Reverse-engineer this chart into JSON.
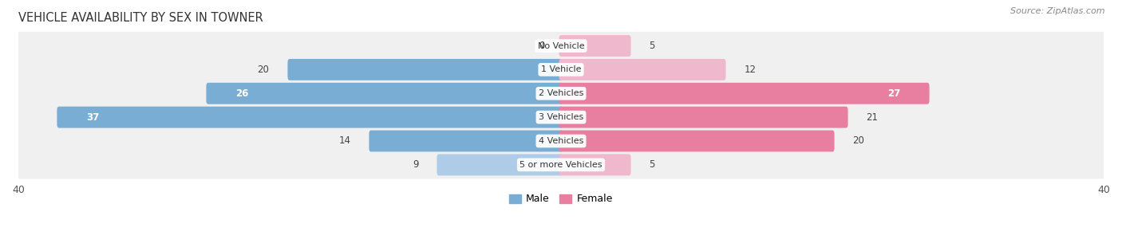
{
  "title": "VEHICLE AVAILABILITY BY SEX IN TOWNER",
  "source": "Source: ZipAtlas.com",
  "categories": [
    "No Vehicle",
    "1 Vehicle",
    "2 Vehicles",
    "3 Vehicles",
    "4 Vehicles",
    "5 or more Vehicles"
  ],
  "male_values": [
    0,
    20,
    26,
    37,
    14,
    9
  ],
  "female_values": [
    5,
    12,
    27,
    21,
    20,
    5
  ],
  "male_color": "#7aadd4",
  "female_color": "#e87fa0",
  "male_color_light": "#aecce8",
  "female_color_light": "#f0b8cc",
  "row_bg_color": "#f0f0f0",
  "axis_max": 40,
  "label_color_dark": "#444444",
  "label_color_white": "#ffffff",
  "title_fontsize": 10.5,
  "source_fontsize": 8,
  "axis_label_fontsize": 9,
  "bar_label_fontsize": 8.5,
  "category_fontsize": 8,
  "legend_fontsize": 9
}
